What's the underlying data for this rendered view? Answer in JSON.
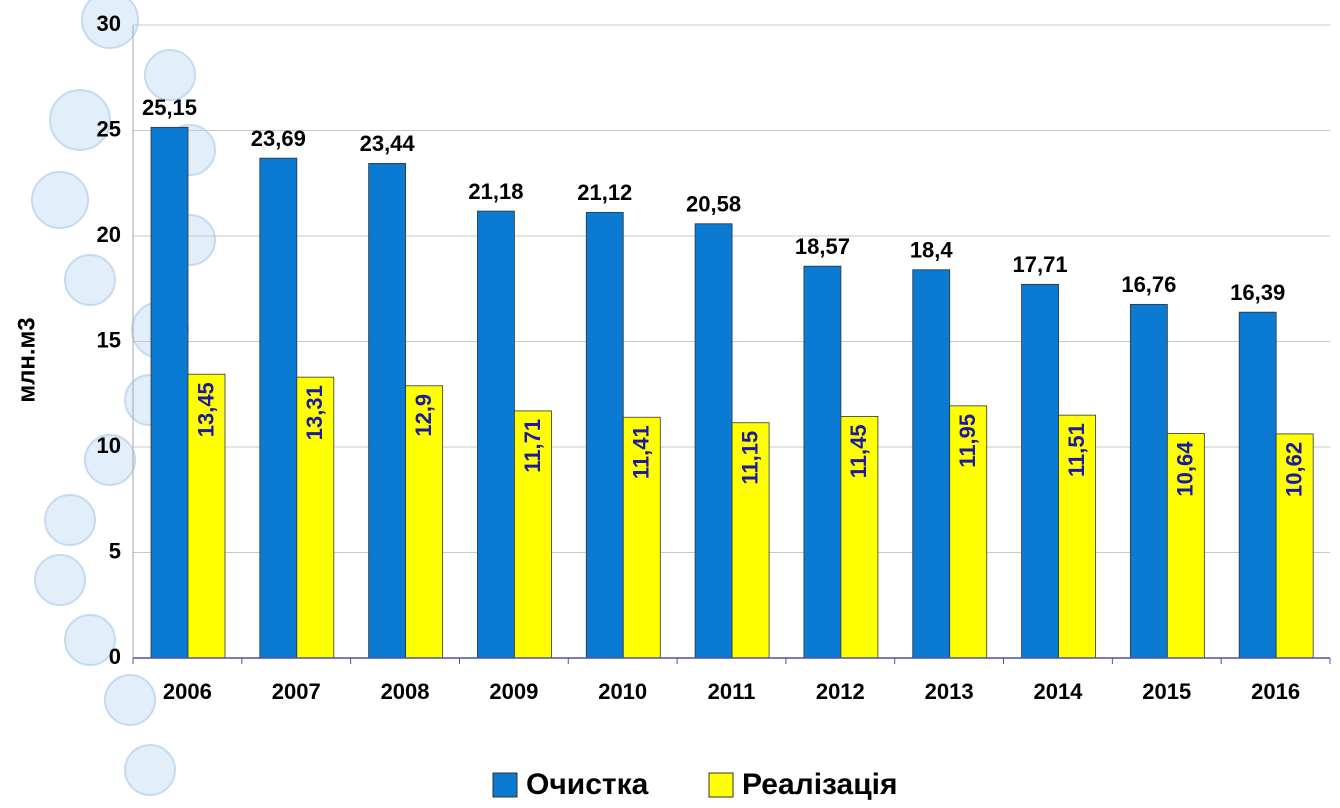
{
  "chart_data": {
    "type": "bar",
    "y_label": "млн.м3",
    "categories": [
      "2006",
      "2007",
      "2008",
      "2009",
      "2010",
      "2011",
      "2012",
      "2013",
      "2014",
      "2015",
      "2016"
    ],
    "series": [
      {
        "name": "Очистка",
        "color": "#0a7ad2",
        "values": [
          25.15,
          23.69,
          23.44,
          21.18,
          21.12,
          20.58,
          18.57,
          18.4,
          17.71,
          16.76,
          16.39
        ],
        "value_labels": [
          "25,15",
          "23,69",
          "23,44",
          "21,18",
          "21,12",
          "20,58",
          "18,57",
          "18,4",
          "17,71",
          "16,76",
          "16,39"
        ]
      },
      {
        "name": "Реалізація",
        "color": "#ffff00",
        "values": [
          13.45,
          13.31,
          12.9,
          11.71,
          11.41,
          11.15,
          11.45,
          11.95,
          11.51,
          10.64,
          10.62
        ],
        "value_labels": [
          "13,45",
          "13,31",
          "12,9",
          "11,71",
          "11,41",
          "11,15",
          "11,45",
          "11,95",
          "11,51",
          "10,64",
          "10,62"
        ]
      }
    ],
    "ylim": [
      0,
      30
    ],
    "yticks": [
      0,
      5,
      10,
      15,
      20,
      25,
      30
    ],
    "grid": true,
    "legend": "bottom"
  }
}
